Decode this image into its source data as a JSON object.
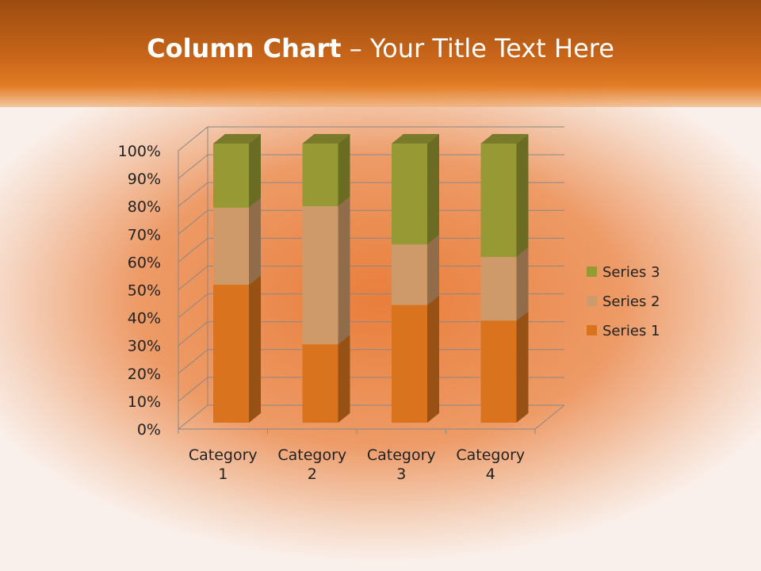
{
  "title": {
    "bold": "Column Chart",
    "rest": " – Your Title Text Here"
  },
  "chart_data": {
    "type": "bar",
    "stacking": "percent",
    "three_d": true,
    "categories": [
      [
        "Category",
        "1"
      ],
      [
        "Category",
        "2"
      ],
      [
        "Category",
        "3"
      ],
      [
        "Category",
        "4"
      ]
    ],
    "series": [
      {
        "name": "Series 1",
        "values": [
          4.3,
          2.5,
          3.5,
          4.5
        ],
        "color": "#d9731e"
      },
      {
        "name": "Series 2",
        "values": [
          2.4,
          4.4,
          1.8,
          2.8
        ],
        "color": "#cf9a6a"
      },
      {
        "name": "Series 3",
        "values": [
          2,
          2,
          3,
          5
        ],
        "color": "#979a34"
      }
    ],
    "y_ticks": [
      "0%",
      "10%",
      "20%",
      "30%",
      "40%",
      "50%",
      "60%",
      "70%",
      "80%",
      "90%",
      "100%"
    ],
    "ylim": [
      0,
      100
    ],
    "grid": true,
    "legend": "right"
  }
}
